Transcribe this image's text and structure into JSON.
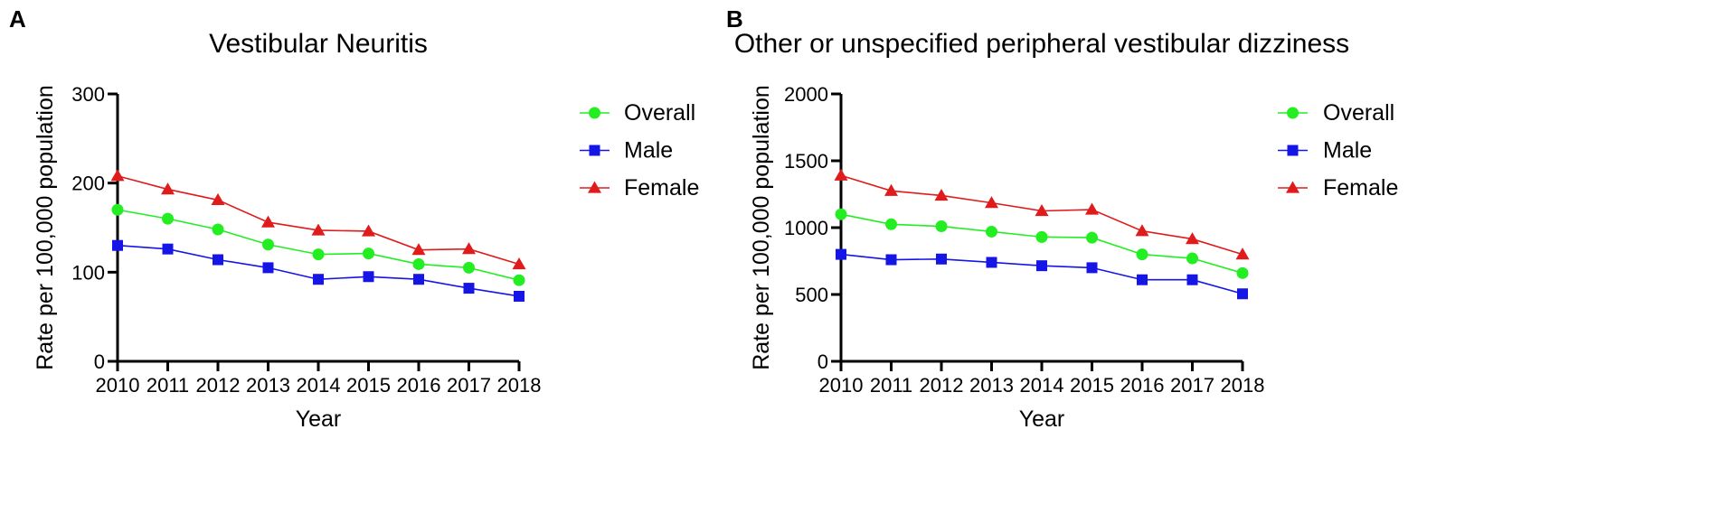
{
  "figure": {
    "panels": [
      "A",
      "B"
    ]
  },
  "chart_data": [
    {
      "type": "line",
      "panel_letter": "A",
      "title": "Vestibular Neuritis",
      "xlabel": "Year",
      "ylabel": "Rate per 100,000 population",
      "x": [
        "2010",
        "2011",
        "2012",
        "2013",
        "2014",
        "2015",
        "2016",
        "2017",
        "2018"
      ],
      "ylim": [
        0,
        300
      ],
      "yticks": [
        "0",
        "100",
        "200",
        "300"
      ],
      "grid": false,
      "legend_position": "right",
      "series": [
        {
          "name": "Overall",
          "color": "#22ee22",
          "marker": "circle",
          "values": [
            170,
            160,
            148,
            131,
            120,
            121,
            109,
            105,
            91
          ]
        },
        {
          "name": "Male",
          "color": "#1515e6",
          "marker": "square",
          "values": [
            130,
            126,
            114,
            105,
            92,
            95,
            92,
            82,
            73
          ]
        },
        {
          "name": "Female",
          "color": "#e01b1b",
          "marker": "triangle",
          "values": [
            208,
            193,
            181,
            156,
            147,
            146,
            125,
            126,
            109
          ]
        }
      ]
    },
    {
      "type": "line",
      "panel_letter": "B",
      "title": "Other or unspecified peripheral vestibular dizziness",
      "xlabel": "Year",
      "ylabel": "Rate per 100,000 population",
      "x": [
        "2010",
        "2011",
        "2012",
        "2013",
        "2014",
        "2015",
        "2016",
        "2017",
        "2018"
      ],
      "ylim": [
        0,
        2000
      ],
      "yticks": [
        "0",
        "500",
        "1000",
        "1500",
        "2000"
      ],
      "grid": false,
      "legend_position": "right",
      "series": [
        {
          "name": "Overall",
          "color": "#22ee22",
          "marker": "circle",
          "values": [
            1100,
            1025,
            1010,
            970,
            930,
            925,
            800,
            770,
            660
          ]
        },
        {
          "name": "Male",
          "color": "#1515e6",
          "marker": "square",
          "values": [
            800,
            760,
            765,
            740,
            715,
            700,
            610,
            610,
            505
          ]
        },
        {
          "name": "Female",
          "color": "#e01b1b",
          "marker": "triangle",
          "values": [
            1390,
            1275,
            1240,
            1185,
            1125,
            1135,
            975,
            915,
            800
          ]
        }
      ]
    }
  ]
}
